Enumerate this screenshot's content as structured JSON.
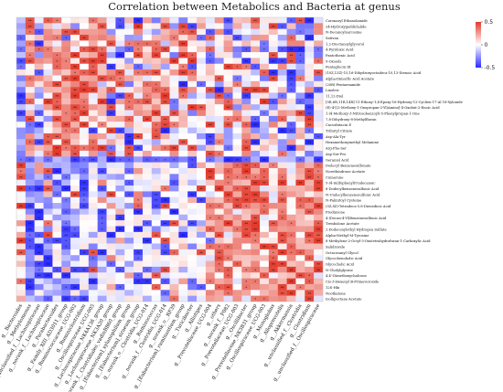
{
  "chart_data": {
    "type": "heatmap",
    "title": "Correlation between Metabolics and Bacteria at genus",
    "row_labels": [
      "Coronaryl Ethanolamide",
      "24-Hydroxygeddiclalide",
      "N-Decanoylsarcosine",
      "Sativan",
      "1,2-Dioctanoylglycerol",
      "4-Pyridoxic Acid",
      "Pantothenic Acid",
      "9-Oxoods",
      "Pentaglucin III",
      "(10Z,13Z)-15,16-Dihydroxyoctadeca-10,13-Dienoic Acid",
      "Alpha-Dimorfic Acid Acetate",
      "(20R)-Pentaenamide",
      "Linoleic",
      "11,12-Diol",
      "[5R,6R,11R,14R]-11-Ethoxy-1,4-Epoxy-16-Hydroxy-12-Cyclien-17-Al 18-Xylonide",
      "(E)-4-[(2-Methoxy-1-Oxopropan-2-Yl)Amino]-4-Oxobut-2-Enoic Acid",
      "1-(4-Methoxy-3-Nitrosobenzoyl)-5-Phenylpropan-1-One",
      "7,8-Dihydroxy-8-Methylflavan",
      "Cucurbitacin E",
      "Tributyl Citrate",
      "Asp-Ala-Tyr",
      "Hexamethoxymethyl Melamine",
      "Arg-Phe-Ser",
      "Asp-Ser-Pro",
      "Geraniol Acid",
      "Dodecyl Benzenesulfonate",
      "Norethindrone Acetate",
      "Cumerone",
      "5-(4-Sulfophenyl)Undecanoic",
      "8-Dodecylbenzenesulfonic Acid",
      "N-Undecylbenzenesulfonic Acid",
      "N-Palmitoyl Cysteine",
      "(5Z,8Z)-Tetradeca-5,8-Dienedioic Acid",
      "Prednisone",
      "4-(Decan-4-Yl)Benzenesulfonic Acid",
      "Trenbolone Acetate",
      "2-Dodecenylethyl Hydrogen Sulfate",
      "Alpha-Methyl-M-Tyrosine",
      "8-Methylene-2-Octyl-3-Oxotetrahydrofuran-1-Carboxylic Acid",
      "Salidroside",
      "Octacosanyl Glycol",
      "Glycochenoholic Acid",
      "Glycocholic Acid",
      "N-Cholylglycine",
      "4,4'-Dimethoxychalcone",
      "Cis-3-Hexenyl B-Primeveroside",
      "12S-Hbi",
      "Nootkatone",
      "Isolhpoctane Acetate"
    ],
    "column_labels": [
      "g__Bacteroides",
      "g__Methylomonas",
      "g__unclassified_f__Lachnospiraceae",
      "g__norank_f__Lachnospiraceae",
      "g__Parabacteroides",
      "g__Family_XIII_AD3011_group",
      "g__Ruminococcaceae_UCG-002",
      "g__Ruminiclostridium",
      "g__Oscillospiraceae_UCG-005",
      "g__Lachnospiraceae_NK4A136_group",
      "g__Lachnospiraceae_NK3A20_group",
      "g__norank_f__Clostridiales_vadinBB60_group",
      "g__[Eubacterium]_xylanophilum_group",
      "g__[Eubacterium]_siraeum_group",
      "g__norank_o__Clostridia_UCG-014",
      "g__Ruminococcus",
      "g__norank_f__Clostridia_UCG-014",
      "g__norank_o__RF39",
      "g__[Eubacterium]_ruminantium_group",
      "g__Turicibacter",
      "g__Allistipes",
      "g__Prevotellaceae_UCG-004",
      "g__others",
      "g__norank_f__F082",
      "g__Prevotellaceae_UCG-003",
      "g__Oscillibacter",
      "g__Prevotellaceae_NK3B31_group",
      "g__Oscillospiraceae_UCG-003",
      "g__Monoglobus",
      "g__Alloprevotella",
      "g__Akkermansia",
      "g__unclassified_f__Clostridia",
      "g__Clostridium",
      "g__unclassified_f__Oscillospiraceae"
    ],
    "colorbar": {
      "min": -0.5,
      "max": 0.5,
      "ticks": [
        0.5,
        0,
        -0.5
      ]
    },
    "colors": {
      "low": "#2b2bff",
      "mid": "#ffffff",
      "high": "#e33a2c"
    },
    "significance_marks": [
      "*",
      "**"
    ],
    "cells": [
      "-+0++000++0-+-+-+0-0+0+-+++000-+-0",
      "-+-+0+-0++0-0+00+-+-+00-+0+0+-+--+",
      "-+-+++++++-00+0-++++0-+-0000+0---+",
      "-0+++-0++++0--0+++0+-+0+--++0-+0-0",
      "-+-+0++0+0+0++++-++00-0+0+0-00++0+",
      "-+++++0+++0--+0++0+0++0+--+-0---0-",
      "-+-+++++++--0+++0-++0-00-000+0+-0-",
      "-+++++0+++00-0++++0+0--00-+0--+-0+",
      "-0+0+++0++-0+--+-0+-0+0+++-+0+0-00",
      "00-0++++++++0+++0+++0+0000-+----0+",
      "-+++0+++++++++00+00+00+0-00-+0-+0-",
      "-+0++++++-0+-0+++0-0-0-0+0+000-0-0",
      "-0-++++++++00++++0++0+-+0+++0+-0+-",
      "-+-0++++0+--+0+++0+-0-+-0-00--0--0",
      "-+0+++++0+-++++++-0000+++-0+-+0--0",
      "-0-++++++++0++++0-0++00+-+-0-000-0",
      "-+-0++++0+-00+++0++-+000+00-0+++-0",
      "-+0-+++0+0+++0+++0+0000+++-0-+0++0",
      "0--0++++0+00+00++++00+0+0+--+0-0+0",
      "---0+++0-0+--00+--0-000-0+--0--+-0",
      "-+-++++0++0+-+0++000--+-0++-+0-+0-",
      "-+-+0++0+0+0-00-00+00-+-0+-0+-+0-0",
      "-+++++++++-0+-0+++0+-+0-0+0+0--+00",
      "-+0++++0+-+0+0+00+0+0++00+-00+-0--",
      "--------------------0-------------",
      "+-+-----0-00-0000-0-+0+++++++00+++",
      "+-++----0-00-+0-00000+++++++0+0+++",
      "+---0-0-0---00000-000+0+++++0+0+++",
      "0--+--0-0+00-0000-0-0+++++++0+0+++",
      "+--+--0-0-0-0000+-00+0+++++00+++++",
      "0--+-0+-0-+0-+--000-000+++++0+++0+",
      "0---0-0-0+000+0--00+-+++++++0+0+++",
      "+-0---0-00+0-+0-+0000+++++++++0+++",
      "0---0---0-0+0-0-0-000+0+0+++0+0+++",
      "0+-0---00-0-000000-00++++++00+++0+",
      "+-0+0--00-0000-0-+0--++++++0++++++",
      "0-0-0--00-0-0-0-00-0+++++++0++++++",
      "+--+0--0-0-0000+00-0-0+0++++0++0++",
      "+-0---0000-+-0-0+0000-+0+++00+++++",
      "0---0-00-000000--0+-0++++0+++0++++",
      "+---0-0-+-0-0-00-+00+0+++++0+++++0",
      "0-0-0--0--+00-00000000+++++++0+0+0",
      "+---0-00-0-0-00000000++0+++0++++0+",
      "0--0-+--+-0-00--+0-00+++0+++++++++",
      "0---0-00-000+-0+00000+0+0+0+0++++0",
      "+-0----0-0000--0-0+-0+++0++0+++0++",
      "0--0---0-0+-000+0+0--0++0+++++++++",
      "0-0---0-0000-000-+000+++++0++++0++",
      "+---0---0-0000-0-+0-0++0+0+++++0+0"
    ]
  }
}
